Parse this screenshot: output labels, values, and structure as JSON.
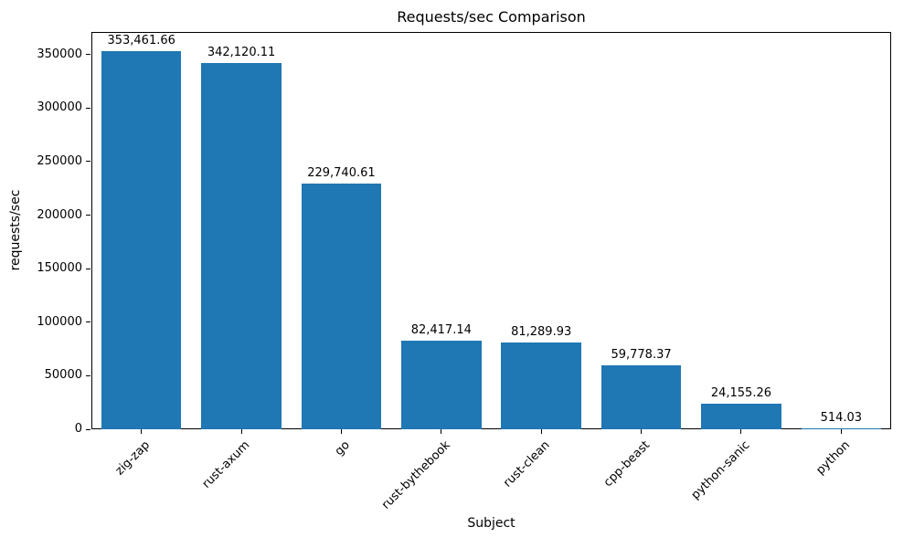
{
  "chart_data": {
    "type": "bar",
    "title": "Requests/sec Comparison",
    "xlabel": "Subject",
    "ylabel": "requests/sec",
    "categories": [
      "zig-zap",
      "rust-axum",
      "go",
      "rust-bythebook",
      "rust-clean",
      "cpp-beast",
      "python-sanic",
      "python"
    ],
    "values": [
      353461.66,
      342120.11,
      229740.61,
      82417.14,
      81289.93,
      59778.37,
      24155.26,
      514.03
    ],
    "value_labels": [
      "353,461.66",
      "342,120.11",
      "229,740.61",
      "82,417.14",
      "81,289.93",
      "59,778.37",
      "24,155.26",
      "514.03"
    ],
    "ylim": [
      0,
      371135
    ],
    "yticks": [
      0,
      50000,
      100000,
      150000,
      200000,
      250000,
      300000,
      350000
    ],
    "ytick_labels": [
      "0",
      "50000",
      "100000",
      "150000",
      "200000",
      "250000",
      "300000",
      "350000"
    ],
    "bar_color": "#1f77b4",
    "grid": false,
    "bar_width_fraction": 0.8
  }
}
